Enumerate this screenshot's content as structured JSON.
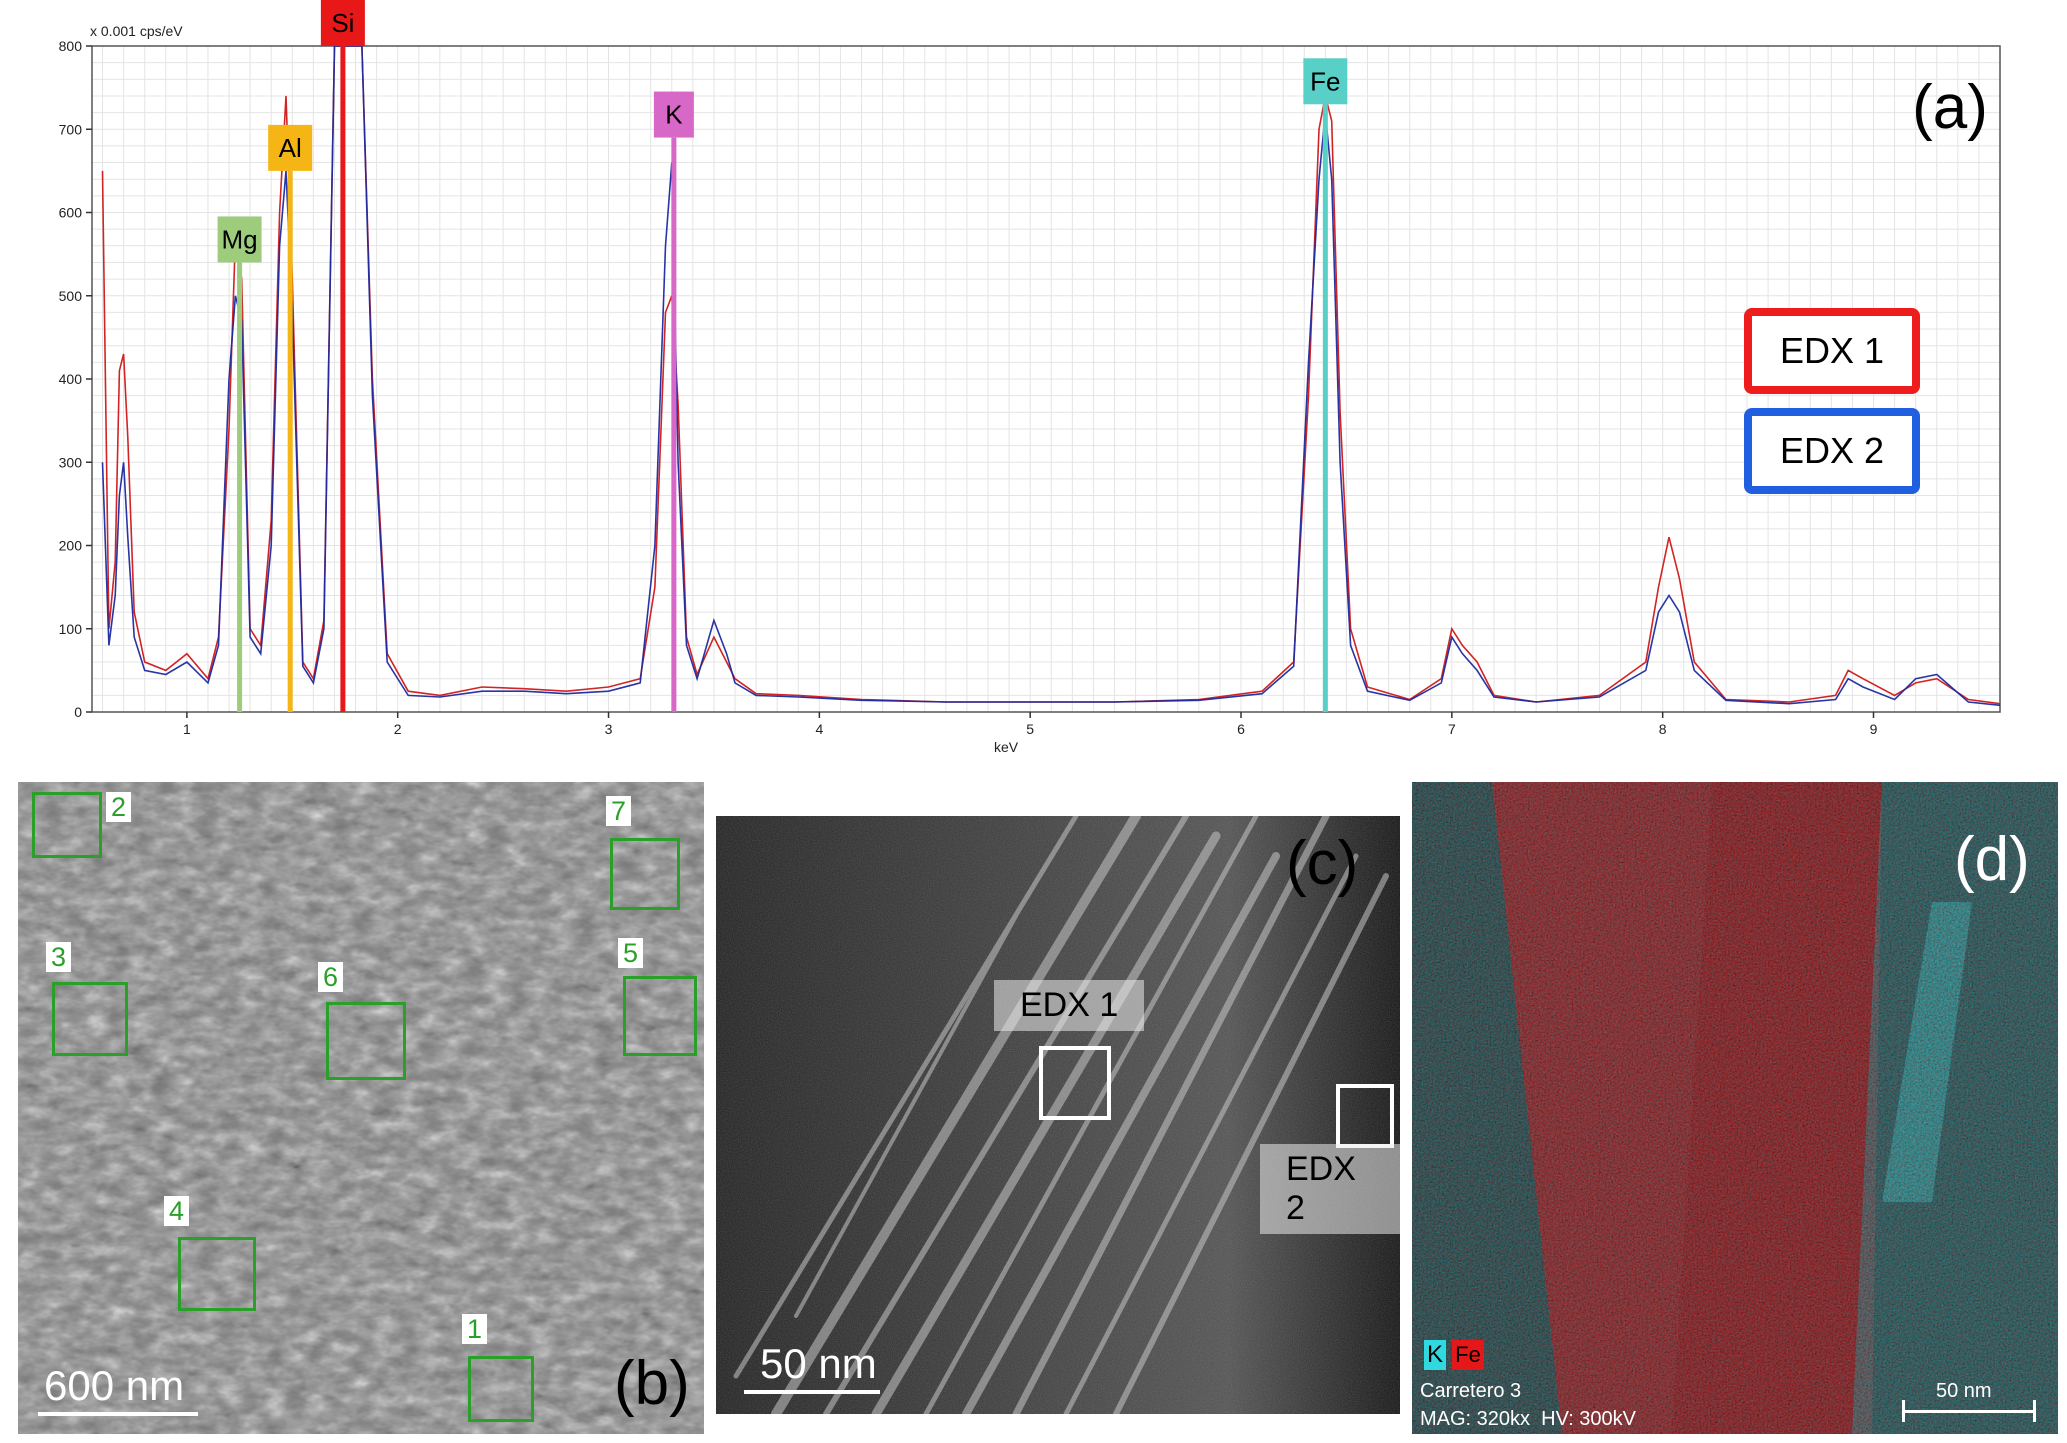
{
  "chart_data": {
    "type": "line",
    "panel_label": "(a)",
    "xlabel": "keV",
    "ylabel_unit": "x 0.001 cps/eV",
    "xlim": [
      0.55,
      9.6
    ],
    "ylim": [
      0,
      800
    ],
    "x_ticks": [
      "1",
      "2",
      "3",
      "4",
      "5",
      "6",
      "7",
      "8",
      "9"
    ],
    "y_ticks": [
      "0",
      "100",
      "200",
      "300",
      "400",
      "500",
      "600",
      "700",
      "800"
    ],
    "grid": true,
    "legend_placement": "right",
    "series": [
      {
        "name": "EDX 1",
        "color": "#d01818",
        "x": [
          0.6,
          0.63,
          0.66,
          0.68,
          0.7,
          0.72,
          0.75,
          0.8,
          0.9,
          1.0,
          1.1,
          1.15,
          1.2,
          1.23,
          1.26,
          1.3,
          1.35,
          1.4,
          1.44,
          1.47,
          1.5,
          1.55,
          1.6,
          1.65,
          1.7,
          1.73,
          1.78,
          1.83,
          1.88,
          1.95,
          2.05,
          2.2,
          2.4,
          2.6,
          2.8,
          3.0,
          3.15,
          3.22,
          3.27,
          3.3,
          3.33,
          3.37,
          3.42,
          3.5,
          3.56,
          3.6,
          3.7,
          3.9,
          4.2,
          4.6,
          5.0,
          5.4,
          5.8,
          6.1,
          6.25,
          6.32,
          6.37,
          6.4,
          6.43,
          6.47,
          6.52,
          6.6,
          6.8,
          6.95,
          7.0,
          7.05,
          7.12,
          7.2,
          7.4,
          7.7,
          7.92,
          7.98,
          8.03,
          8.08,
          8.15,
          8.3,
          8.6,
          8.82,
          8.88,
          8.95,
          9.1,
          9.2,
          9.3,
          9.45,
          9.6
        ],
        "y": [
          650,
          100,
          180,
          410,
          430,
          330,
          120,
          60,
          50,
          70,
          40,
          90,
          340,
          570,
          520,
          100,
          80,
          230,
          600,
          740,
          520,
          60,
          40,
          110,
          800,
          800,
          800,
          800,
          400,
          70,
          25,
          20,
          30,
          28,
          25,
          30,
          40,
          150,
          480,
          500,
          370,
          90,
          45,
          90,
          60,
          40,
          22,
          20,
          15,
          12,
          12,
          12,
          15,
          25,
          60,
          380,
          700,
          740,
          710,
          360,
          100,
          30,
          15,
          40,
          100,
          80,
          60,
          20,
          12,
          20,
          60,
          150,
          210,
          160,
          60,
          15,
          12,
          20,
          50,
          40,
          20,
          35,
          40,
          15,
          10
        ]
      },
      {
        "name": "EDX 2",
        "color": "#1c2aa0",
        "x": [
          0.6,
          0.63,
          0.66,
          0.68,
          0.7,
          0.72,
          0.75,
          0.8,
          0.9,
          1.0,
          1.1,
          1.15,
          1.2,
          1.23,
          1.26,
          1.3,
          1.35,
          1.4,
          1.44,
          1.47,
          1.5,
          1.55,
          1.6,
          1.65,
          1.7,
          1.73,
          1.78,
          1.83,
          1.88,
          1.95,
          2.05,
          2.2,
          2.4,
          2.6,
          2.8,
          3.0,
          3.15,
          3.22,
          3.27,
          3.3,
          3.33,
          3.37,
          3.42,
          3.5,
          3.56,
          3.6,
          3.7,
          3.9,
          4.2,
          4.6,
          5.0,
          5.4,
          5.8,
          6.1,
          6.25,
          6.32,
          6.37,
          6.4,
          6.43,
          6.47,
          6.52,
          6.6,
          6.8,
          6.95,
          7.0,
          7.05,
          7.12,
          7.2,
          7.4,
          7.7,
          7.92,
          7.98,
          8.03,
          8.08,
          8.15,
          8.3,
          8.6,
          8.82,
          8.88,
          8.95,
          9.1,
          9.2,
          9.3,
          9.45,
          9.6
        ],
        "y": [
          300,
          80,
          140,
          260,
          300,
          210,
          90,
          50,
          45,
          60,
          35,
          80,
          400,
          500,
          470,
          90,
          70,
          200,
          560,
          650,
          480,
          55,
          35,
          100,
          800,
          800,
          800,
          800,
          380,
          60,
          20,
          18,
          25,
          25,
          22,
          25,
          35,
          200,
          560,
          660,
          300,
          80,
          40,
          110,
          70,
          35,
          20,
          18,
          14,
          12,
          12,
          12,
          14,
          22,
          55,
          420,
          640,
          720,
          640,
          300,
          80,
          25,
          14,
          35,
          90,
          70,
          50,
          18,
          12,
          18,
          50,
          120,
          140,
          120,
          50,
          14,
          10,
          15,
          40,
          30,
          15,
          40,
          45,
          12,
          8
        ]
      }
    ],
    "element_markers": [
      {
        "label": "Mg",
        "kev": 1.25,
        "height": 540,
        "color": "#9ccc7c"
      },
      {
        "label": "Al",
        "kev": 1.49,
        "height": 650,
        "color": "#f5b515"
      },
      {
        "label": "Si",
        "kev": 1.74,
        "height": 800,
        "color": "#e81818"
      },
      {
        "label": "K",
        "kev": 3.31,
        "height": 690,
        "color": "#d868c8"
      },
      {
        "label": "Fe",
        "kev": 6.4,
        "height": 730,
        "color": "#58d0c8"
      }
    ]
  },
  "panel_b": {
    "letter": "(b)",
    "scale": "600 nm",
    "regions": [
      "1",
      "2",
      "3",
      "4",
      "5",
      "6",
      "7"
    ]
  },
  "panel_c": {
    "letter": "(c)",
    "scale": "50 nm",
    "edx1": "EDX 1",
    "edx2": "EDX 2"
  },
  "panel_d": {
    "letter": "(d)",
    "legend_k": "K",
    "legend_fe": "Fe",
    "caption_line1": "Carretero 3",
    "caption_line2": "MAG: 320kx  HV: 300kV",
    "scale": "50 nm"
  }
}
